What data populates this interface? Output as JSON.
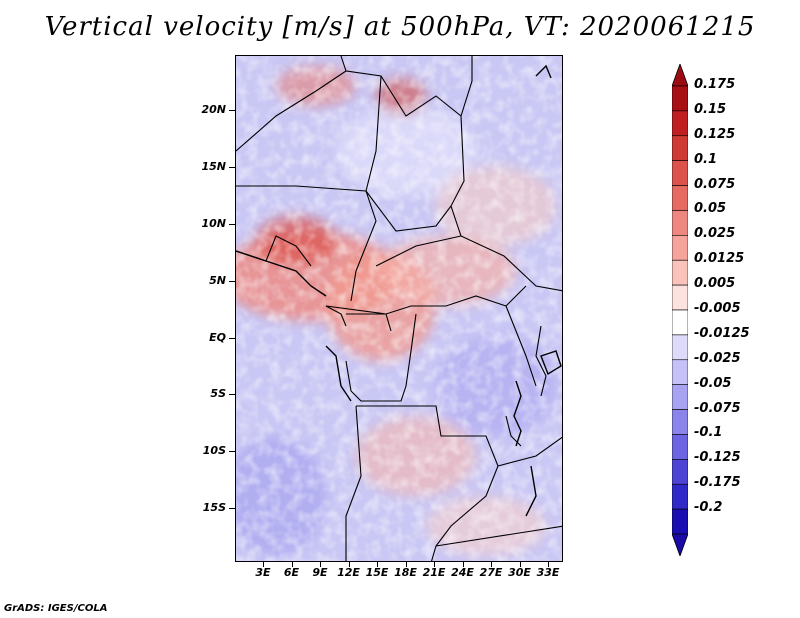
{
  "title": "Vertical velocity [m/s] at 500hPa, VT: 2020061215",
  "footer": "GrADS: IGES/COLA",
  "map": {
    "lat_labels": [
      "20N",
      "15N",
      "10N",
      "5N",
      "EQ",
      "5S",
      "10S",
      "15S"
    ],
    "lon_labels": [
      "3E",
      "6E",
      "9E",
      "12E",
      "15E",
      "18E",
      "21E",
      "24E",
      "27E",
      "30E",
      "33E"
    ]
  },
  "colorbar": {
    "levels": [
      "0.175",
      "0.15",
      "0.125",
      "0.1",
      "0.075",
      "0.05",
      "0.025",
      "0.0125",
      "0.005",
      "-0.005",
      "-0.0125",
      "-0.025",
      "-0.05",
      "-0.075",
      "-0.1",
      "-0.125",
      "-0.175",
      "-0.2"
    ],
    "colors": [
      "#a80f15",
      "#bf1f20",
      "#cf3a35",
      "#dc524c",
      "#e56a62",
      "#ee8780",
      "#f5a39b",
      "#f9c2bb",
      "#fde3df",
      "#ffffff",
      "#dedbfa",
      "#c5c1f6",
      "#a9a4f1",
      "#8b84ea",
      "#6c64e1",
      "#4d44d6",
      "#3128c8",
      "#1b0eb0"
    ]
  },
  "chart_data": {
    "type": "heatmap",
    "title": "Vertical velocity [m/s] at 500hPa, VT: 2020061215",
    "x_ticks": [
      "3E",
      "6E",
      "9E",
      "12E",
      "15E",
      "18E",
      "21E",
      "24E",
      "27E",
      "30E",
      "33E"
    ],
    "y_ticks": [
      "20N",
      "15N",
      "10N",
      "5N",
      "EQ",
      "5S",
      "10S",
      "15S"
    ],
    "colorbar_levels": [
      0.175,
      0.15,
      0.125,
      0.1,
      0.075,
      0.05,
      0.025,
      0.0125,
      0.005,
      -0.005,
      -0.0125,
      -0.025,
      -0.05,
      -0.075,
      -0.1,
      -0.125,
      -0.175,
      -0.2
    ]
  }
}
